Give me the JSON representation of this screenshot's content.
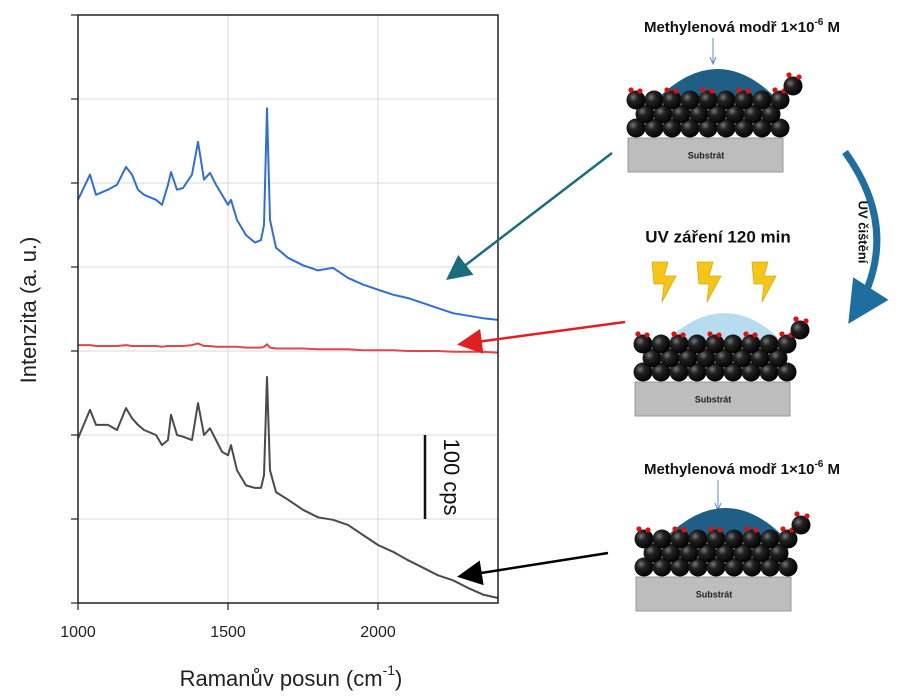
{
  "chart_data": {
    "type": "line",
    "x_label": {
      "text": "Ramanův posun (cm",
      "sup": "-1",
      "close": ")"
    },
    "y_label": "Intenzita (a. u.)",
    "x": [
      1000,
      1040,
      1060,
      1100,
      1130,
      1160,
      1180,
      1200,
      1220,
      1260,
      1280,
      1300,
      1310,
      1330,
      1350,
      1380,
      1400,
      1420,
      1440,
      1460,
      1480,
      1500,
      1510,
      1530,
      1560,
      1590,
      1610,
      1620,
      1630,
      1640,
      1660,
      1700,
      1750,
      1800,
      1850,
      1900,
      1950,
      2000,
      2050,
      2100,
      2150,
      2200,
      2250,
      2300,
      2350,
      2400
    ],
    "series": [
      {
        "color": "#2e6fd6",
        "values": [
          480,
          510,
          486,
          492,
          498,
          519,
          510,
          492,
          486,
          480,
          474,
          498,
          513,
          492,
          494,
          510,
          549,
          504,
          512,
          498,
          486,
          474,
          480,
          456,
          438,
          429,
          432,
          450,
          589,
          456,
          423,
          411,
          402,
          396,
          399,
          387,
          379,
          373,
          367,
          363,
          357,
          351,
          345,
          342,
          339,
          337
        ]
      },
      {
        "color": "#e0474c",
        "values": [
          307,
          307,
          306,
          306,
          306,
          307,
          306,
          306,
          306,
          306,
          305,
          306,
          306,
          306,
          306,
          307,
          309,
          306,
          306,
          305,
          305,
          305,
          305,
          305,
          304,
          304,
          304,
          305,
          308,
          304,
          303,
          303,
          303,
          302,
          302,
          302,
          301,
          301,
          301,
          300,
          300,
          300,
          299,
          299,
          299,
          298
        ]
      },
      {
        "color": "#4a4a4a",
        "values": [
          196,
          230,
          212,
          212,
          206,
          232,
          220,
          212,
          206,
          200,
          188,
          194,
          224,
          200,
          198,
          194,
          238,
          200,
          208,
          194,
          180,
          176,
          188,
          158,
          140,
          137,
          137,
          152,
          269,
          158,
          132,
          123,
          111,
          102,
          99,
          93,
          81,
          69,
          61,
          51,
          42,
          33,
          27,
          18,
          10,
          6
        ]
      }
    ],
    "xlim": [
      1000,
      2400
    ],
    "xticks": [
      1000,
      1500,
      2000
    ],
    "ylim": [
      0,
      700
    ],
    "yticks": [
      0,
      100,
      200,
      300,
      400,
      500,
      600,
      700
    ],
    "grid": true,
    "scale_bar": {
      "value": 100,
      "label": "100 cps"
    }
  },
  "diagram": {
    "top_label": {
      "text": "Methylenová modř 1×10",
      "sup": "-6",
      "unit": " M"
    },
    "middle_label": "UV záření 120 min",
    "bottom_label": {
      "text": "Methylenová modř 1×10",
      "sup": "-6",
      "unit": " M"
    },
    "substrate": [
      "Substrát",
      "Substrát",
      "Substrát"
    ],
    "cleaning_label": "UV čištění"
  }
}
